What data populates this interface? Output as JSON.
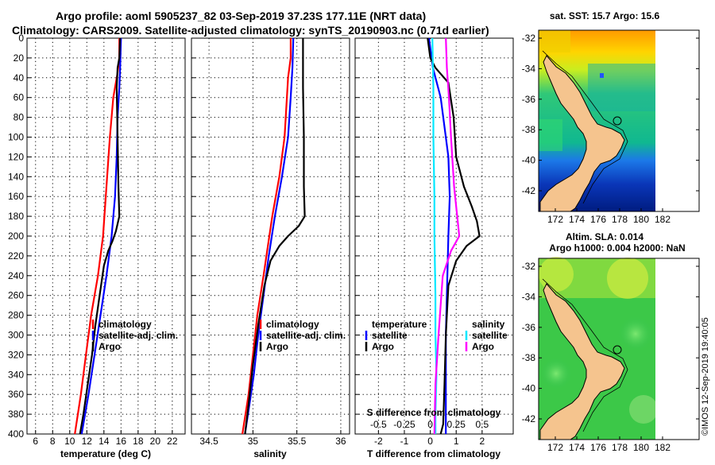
{
  "header": {
    "line1": "Argo profile: aoml 5905237_82 03-Sep-2019 37.23S 177.11E (NRT data)",
    "line2": "Climatology: CARS2009. Satellite-adjusted climatology: synTS_20190903.nc (0.71d earlier)"
  },
  "watermark": "©IMOS 12-Sep-2019 19:40:05",
  "colors": {
    "red": "#ff0000",
    "blue": "#0000ff",
    "black": "#000000",
    "cyan": "#00e8ff",
    "magenta": "#ff00ff",
    "land": "#f5c48e"
  },
  "chart_data": [
    {
      "type": "line",
      "id": "temperature",
      "xlabel": "temperature (deg C)",
      "xlim": [
        5,
        23.5
      ],
      "xticks": [
        6,
        8,
        10,
        12,
        14,
        16,
        18,
        20,
        22
      ],
      "ylim": [
        0,
        400
      ],
      "yticks": [
        0,
        20,
        40,
        60,
        80,
        100,
        120,
        140,
        160,
        180,
        200,
        220,
        240,
        260,
        280,
        300,
        320,
        340,
        360,
        380,
        400
      ],
      "ylabel": "",
      "legend": [
        "climatology",
        "satellite-adj. clim.",
        "Argo"
      ],
      "series": [
        {
          "name": "climatology",
          "color": "red",
          "points": [
            [
              15.8,
              0
            ],
            [
              15.8,
              20
            ],
            [
              15.6,
              35
            ],
            [
              15.1,
              60
            ],
            [
              14.7,
              100
            ],
            [
              14.3,
              150
            ],
            [
              13.9,
              200
            ],
            [
              13.3,
              240
            ],
            [
              12.5,
              280
            ],
            [
              11.9,
              320
            ],
            [
              11.3,
              360
            ],
            [
              10.6,
              400
            ]
          ]
        },
        {
          "name": "satellite-adj. clim.",
          "color": "blue",
          "points": [
            [
              16.0,
              0
            ],
            [
              15.9,
              30
            ],
            [
              15.8,
              50
            ],
            [
              15.6,
              80
            ],
            [
              15.5,
              120
            ],
            [
              15.3,
              160
            ],
            [
              14.9,
              200
            ],
            [
              14.3,
              240
            ],
            [
              13.6,
              280
            ],
            [
              12.9,
              320
            ],
            [
              12.2,
              360
            ],
            [
              11.4,
              400
            ]
          ]
        },
        {
          "name": "Argo",
          "color": "black",
          "points": [
            [
              15.9,
              0
            ],
            [
              15.8,
              20
            ],
            [
              15.6,
              30
            ],
            [
              15.5,
              50
            ],
            [
              15.6,
              100
            ],
            [
              15.7,
              150
            ],
            [
              15.8,
              180
            ],
            [
              15.4,
              195
            ],
            [
              15.0,
              205
            ],
            [
              14.5,
              215
            ],
            [
              14.0,
              230
            ],
            [
              13.5,
              260
            ],
            [
              13.0,
              290
            ],
            [
              12.6,
              320
            ],
            [
              12.1,
              350
            ],
            [
              11.6,
              380
            ],
            [
              11.2,
              400
            ]
          ]
        }
      ]
    },
    {
      "type": "line",
      "id": "salinity",
      "xlabel": "salinity",
      "xlim": [
        34.3,
        36.1
      ],
      "xticks": [
        34.5,
        35,
        35.5,
        36
      ],
      "ylim": [
        0,
        400
      ],
      "legend": [
        "climatology",
        "satellite-adj. clim.",
        "Argo"
      ],
      "series": [
        {
          "name": "climatology",
          "color": "red",
          "points": [
            [
              35.43,
              0
            ],
            [
              35.43,
              20
            ],
            [
              35.4,
              40
            ],
            [
              35.36,
              100
            ],
            [
              35.3,
              140
            ],
            [
              35.22,
              180
            ],
            [
              35.17,
              210
            ],
            [
              35.12,
              240
            ],
            [
              35.05,
              280
            ],
            [
              35.0,
              320
            ],
            [
              34.95,
              360
            ],
            [
              34.88,
              400
            ]
          ]
        },
        {
          "name": "satellite-adj. clim.",
          "color": "blue",
          "points": [
            [
              35.46,
              0
            ],
            [
              35.45,
              30
            ],
            [
              35.43,
              60
            ],
            [
              35.4,
              100
            ],
            [
              35.33,
              140
            ],
            [
              35.25,
              180
            ],
            [
              35.18,
              220
            ],
            [
              35.12,
              260
            ],
            [
              35.06,
              300
            ],
            [
              35.01,
              340
            ],
            [
              34.96,
              370
            ],
            [
              34.91,
              400
            ]
          ]
        },
        {
          "name": "Argo",
          "color": "black",
          "points": [
            [
              35.57,
              0
            ],
            [
              35.57,
              50
            ],
            [
              35.58,
              100
            ],
            [
              35.58,
              150
            ],
            [
              35.59,
              180
            ],
            [
              35.52,
              190
            ],
            [
              35.4,
              200
            ],
            [
              35.3,
              210
            ],
            [
              35.2,
              225
            ],
            [
              35.13,
              250
            ],
            [
              35.06,
              290
            ],
            [
              35.0,
              330
            ],
            [
              34.95,
              370
            ],
            [
              34.91,
              400
            ]
          ]
        }
      ]
    },
    {
      "type": "line",
      "id": "difference",
      "xlabel": "T difference from climatology",
      "xlabel_top": "S difference from climatology",
      "xlim": [
        -2.9,
        3.2
      ],
      "xticks": [
        -2,
        -1,
        0,
        1,
        2
      ],
      "xlim_top": [
        -0.725,
        0.8
      ],
      "xticks_top": [
        -0.5,
        -0.25,
        0,
        0.25,
        0.5
      ],
      "ylim": [
        0,
        400
      ],
      "legend_left_title": "temperature",
      "legend_left": [
        "satellite",
        "Argo"
      ],
      "legend_right_title": "salinity",
      "legend_right": [
        "satellite",
        "Argo"
      ],
      "series": [
        {
          "name": "T satellite",
          "color": "blue",
          "axis": "T",
          "points": [
            [
              -0.05,
              0
            ],
            [
              0.1,
              30
            ],
            [
              0.4,
              60
            ],
            [
              0.7,
              120
            ],
            [
              0.75,
              160
            ],
            [
              0.7,
              200
            ],
            [
              0.65,
              250
            ],
            [
              0.6,
              300
            ],
            [
              0.6,
              350
            ],
            [
              0.6,
              400
            ]
          ]
        },
        {
          "name": "T Argo",
          "color": "black",
          "axis": "T",
          "points": [
            [
              -0.1,
              0
            ],
            [
              0.0,
              20
            ],
            [
              0.2,
              30
            ],
            [
              0.7,
              45
            ],
            [
              0.9,
              80
            ],
            [
              1.0,
              120
            ],
            [
              1.3,
              150
            ],
            [
              1.6,
              170
            ],
            [
              1.8,
              185
            ],
            [
              1.9,
              200
            ],
            [
              1.4,
              210
            ],
            [
              1.0,
              225
            ],
            [
              0.7,
              250
            ],
            [
              0.6,
              300
            ],
            [
              0.55,
              350
            ],
            [
              0.5,
              390
            ],
            [
              0.4,
              400
            ]
          ]
        },
        {
          "name": "S satellite",
          "color": "cyan",
          "axis": "S",
          "points": [
            [
              0.02,
              0
            ],
            [
              0.03,
              50
            ],
            [
              0.03,
              100
            ],
            [
              0.04,
              160
            ],
            [
              0.04,
              200
            ],
            [
              0.05,
              260
            ],
            [
              0.05,
              300
            ],
            [
              0.06,
              340
            ],
            [
              0.05,
              380
            ],
            [
              0.05,
              400
            ]
          ]
        },
        {
          "name": "S Argo",
          "color": "magenta",
          "axis": "S",
          "points": [
            [
              0.15,
              0
            ],
            [
              0.16,
              30
            ],
            [
              0.18,
              60
            ],
            [
              0.2,
              100
            ],
            [
              0.23,
              150
            ],
            [
              0.26,
              180
            ],
            [
              0.28,
              200
            ],
            [
              0.2,
              215
            ],
            [
              0.12,
              240
            ],
            [
              0.08,
              300
            ],
            [
              0.05,
              350
            ],
            [
              0.04,
              400
            ]
          ]
        }
      ]
    }
  ],
  "maps": [
    {
      "title": "sat. SST: 15.7 Argo: 15.6",
      "xticks": [
        "172",
        "174",
        "176",
        "178",
        "180",
        "182"
      ],
      "yticks": [
        "-32",
        "-34",
        "-36",
        "-38",
        "-40",
        "-42"
      ]
    },
    {
      "title_line1": "Altim. SLA: 0.014",
      "title_line2": "Argo h1000: 0.004 h2000: NaN",
      "xticks": [
        "172",
        "174",
        "176",
        "178",
        "180",
        "182"
      ],
      "yticks": [
        "-32",
        "-34",
        "-36",
        "-38",
        "-40",
        "-42"
      ]
    }
  ]
}
